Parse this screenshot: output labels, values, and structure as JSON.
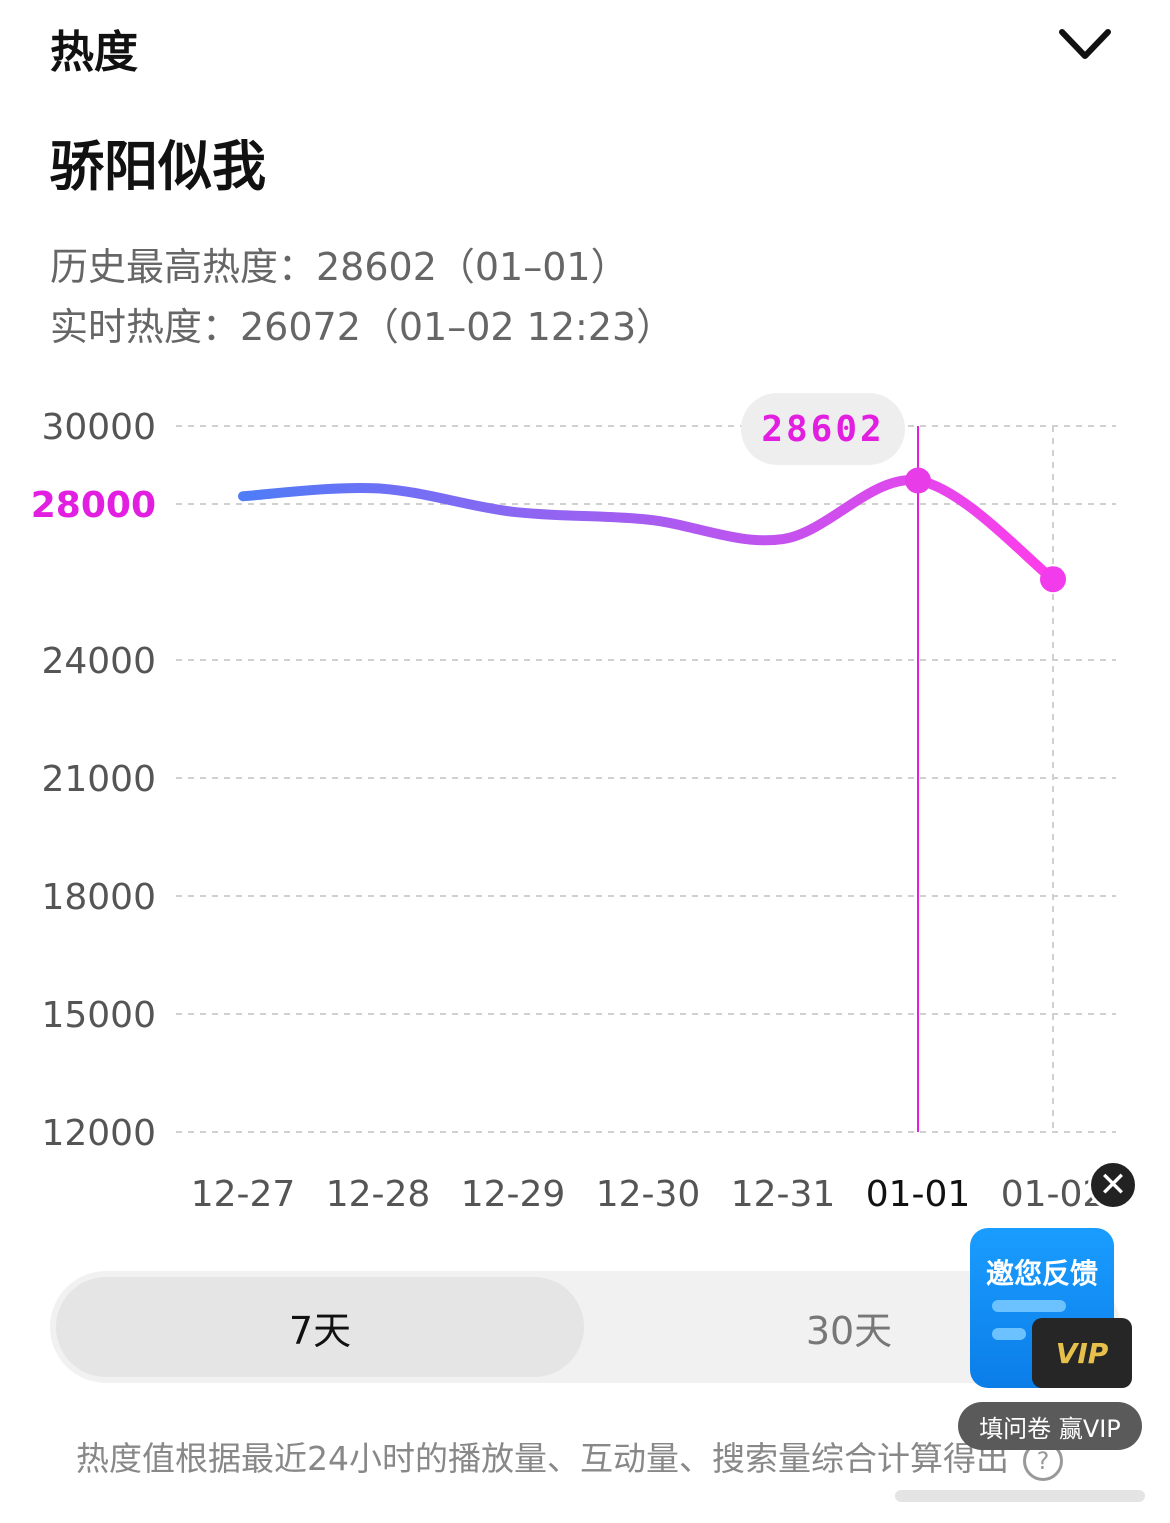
{
  "header": {
    "title": "热度",
    "collapse_icon": "chevron-down-icon"
  },
  "show": {
    "title": "骄阳似我"
  },
  "stats": {
    "peak": "历史最高热度：28602（01–01）",
    "realtime": "实时热度：26072（01–02 12:23）"
  },
  "chart_data": {
    "type": "line",
    "categories": [
      "12-27",
      "12-28",
      "12-29",
      "12-30",
      "12-31",
      "01-01",
      "01-02"
    ],
    "series": [
      {
        "values": [
          28200,
          28400,
          27800,
          27600,
          27100,
          28602,
          26072
        ]
      }
    ],
    "y_ticks": [
      "30000",
      "28000",
      "24000",
      "21000",
      "18000",
      "15000",
      "12000"
    ],
    "tooltip": {
      "label": "28602",
      "category": "01-01"
    },
    "highlight_tick": "28000",
    "grid": true,
    "colors": {
      "line_start": "#4f7cf7",
      "line_end": "#ff3dea",
      "accent": "#e21fe0"
    }
  },
  "range_toggle": {
    "options": [
      "7天",
      "30天"
    ],
    "selected": "7天"
  },
  "footnote": "热度值根据最近24小时的播放量、互动量、搜索量综合计算得出",
  "promo": {
    "title": "邀您反馈",
    "badge": "VIP",
    "caption": "填问卷 赢VIP",
    "close_icon": "close-icon"
  }
}
